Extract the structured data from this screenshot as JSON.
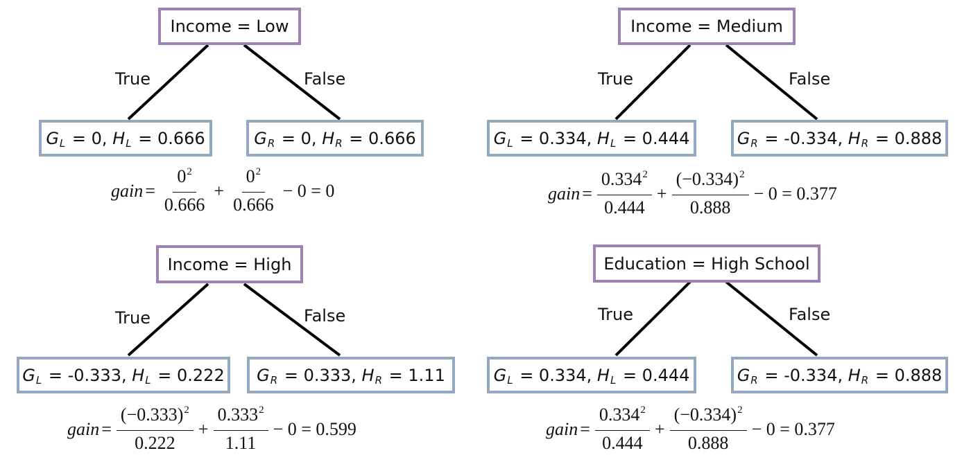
{
  "trees": [
    {
      "split": "Income = Low",
      "true_label": "True",
      "false_label": "False",
      "left": {
        "g_letter": "G",
        "g_sub": "L",
        "g_eq": " = 0, ",
        "h_letter": "H",
        "h_sub": "L",
        "h_eq": " = 0.666"
      },
      "right": {
        "g_letter": "G",
        "g_sub": "R",
        "g_eq": " = 0, ",
        "h_letter": "H",
        "h_sub": "R",
        "h_eq": " = 0.666"
      },
      "gain": {
        "word": "gain",
        "eq": "=",
        "n1": "0",
        "n1_exp": "2",
        "d1": "0.666",
        "plus": "+",
        "n2": "0",
        "n2_exp": "2",
        "d2": "0.666",
        "tail": "− 0 = 0"
      }
    },
    {
      "split": "Income = Medium",
      "true_label": "True",
      "false_label": "False",
      "left": {
        "g_letter": "G",
        "g_sub": "L",
        "g_eq": " = 0.334, ",
        "h_letter": "H",
        "h_sub": "L",
        "h_eq": " = 0.444"
      },
      "right": {
        "g_letter": "G",
        "g_sub": "R",
        "g_eq": " = -0.334, ",
        "h_letter": "H",
        "h_sub": "R",
        "h_eq": " = 0.888"
      },
      "gain": {
        "word": "gain",
        "eq": "=",
        "n1": "0.334",
        "n1_exp": "2",
        "d1": "0.444",
        "plus": "+",
        "n2": "(−0.334)",
        "n2_exp": "2",
        "d2": "0.888",
        "tail": "− 0 = 0.377"
      }
    },
    {
      "split": "Income = High",
      "true_label": "True",
      "false_label": "False",
      "left": {
        "g_letter": "G",
        "g_sub": "L",
        "g_eq": " = -0.333, ",
        "h_letter": "H",
        "h_sub": "L",
        "h_eq": " = 0.222"
      },
      "right": {
        "g_letter": "G",
        "g_sub": "R",
        "g_eq": " = 0.333, ",
        "h_letter": "H",
        "h_sub": "R",
        "h_eq": " = 1.11"
      },
      "gain": {
        "word": "gain",
        "eq": "=",
        "n1": "(−0.333)",
        "n1_exp": "2",
        "d1": "0.222",
        "plus": "+",
        "n2": "0.333",
        "n2_exp": "2",
        "d2": "1.11",
        "tail": "− 0 = 0.599"
      }
    },
    {
      "split": "Education = High School",
      "true_label": "True",
      "false_label": "False",
      "left": {
        "g_letter": "G",
        "g_sub": "L",
        "g_eq": " = 0.334, ",
        "h_letter": "H",
        "h_sub": "L",
        "h_eq": " = 0.444"
      },
      "right": {
        "g_letter": "G",
        "g_sub": "R",
        "g_eq": " = -0.334, ",
        "h_letter": "H",
        "h_sub": "R",
        "h_eq": " = 0.888"
      },
      "gain": {
        "word": "gain",
        "eq": "=",
        "n1": "0.334",
        "n1_exp": "2",
        "d1": "0.444",
        "plus": "+",
        "n2": "(−0.334)",
        "n2_exp": "2",
        "d2": "0.888",
        "tail": "− 0 = 0.377"
      }
    }
  ]
}
